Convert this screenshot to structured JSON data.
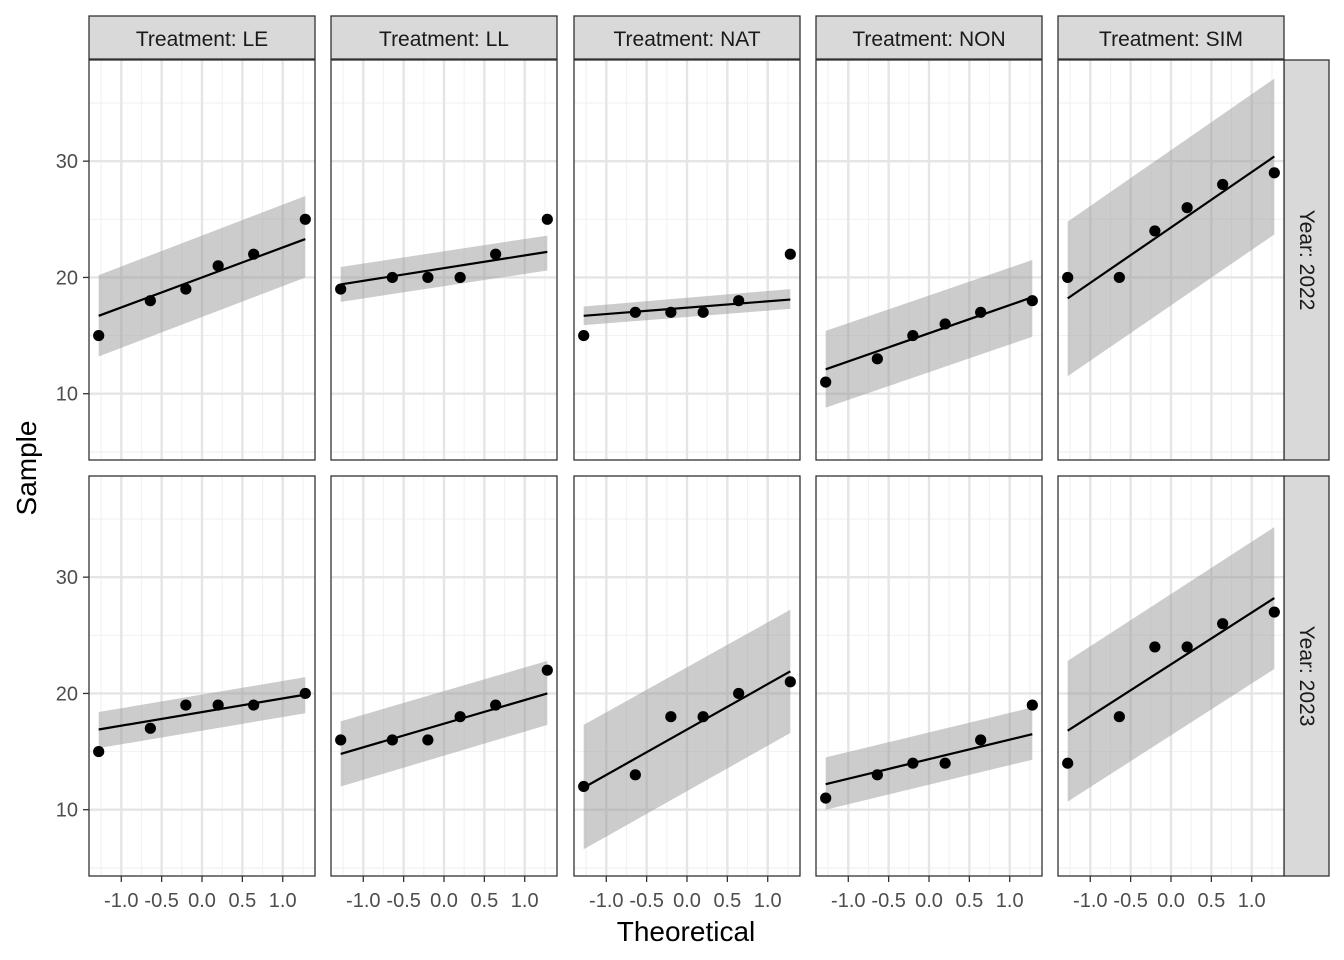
{
  "chart_data": {
    "type": "scatter",
    "subtype": "qq-plot-faceted",
    "xlabel": "Theoretical",
    "ylabel": "Sample",
    "x_ticks": [
      -1.0,
      -0.5,
      0.0,
      0.5,
      1.0
    ],
    "x_tick_labels": [
      "-1.0",
      "-0.5",
      "0.0",
      "0.5",
      "1.0"
    ],
    "y_ticks": [
      10,
      20,
      30
    ],
    "y_tick_labels": [
      "10",
      "20",
      "30"
    ],
    "xlim": [
      -1.4,
      1.4
    ],
    "ylim": [
      4.3,
      38.7
    ],
    "grid": true,
    "theme": "bw",
    "colors": {
      "points": "#000000",
      "line": "#000000",
      "band": "#999999",
      "strip": "#d9d9d9",
      "grid_major": "#e5e5e5",
      "grid_minor": "#f2f2f2"
    },
    "theoretical_quantiles": [
      -1.28,
      -0.64,
      -0.2,
      0.2,
      0.64,
      1.28
    ],
    "col_facets": [
      "Treatment: LE",
      "Treatment: LL",
      "Treatment: NAT",
      "Treatment: NON",
      "Treatment: SIM"
    ],
    "row_facets": [
      "Year: 2022",
      "Year: 2023"
    ],
    "panels": [
      {
        "row": 0,
        "col": 0,
        "sample": [
          15,
          18,
          19,
          21,
          22,
          25
        ],
        "line": [
          [
            -1.28,
            16.7
          ],
          [
            1.28,
            23.3
          ]
        ],
        "band_lower": [
          13.2,
          20.0
        ],
        "band_upper": [
          20.2,
          27.0
        ]
      },
      {
        "row": 0,
        "col": 1,
        "sample": [
          19,
          20,
          20,
          20,
          22,
          25
        ],
        "line": [
          [
            -1.28,
            19.4
          ],
          [
            1.28,
            22.2
          ]
        ],
        "band_lower": [
          17.9,
          20.6
        ],
        "band_upper": [
          20.9,
          23.6
        ]
      },
      {
        "row": 0,
        "col": 2,
        "sample": [
          15,
          17,
          17,
          17,
          18,
          22
        ],
        "line": [
          [
            -1.28,
            16.7
          ],
          [
            1.28,
            18.1
          ]
        ],
        "band_lower": [
          15.9,
          17.3
        ],
        "band_upper": [
          17.5,
          19.0
        ]
      },
      {
        "row": 0,
        "col": 3,
        "sample": [
          11,
          13,
          15,
          16,
          17,
          18
        ],
        "line": [
          [
            -1.28,
            12.1
          ],
          [
            1.28,
            18.3
          ]
        ],
        "band_lower": [
          8.8,
          14.9
        ],
        "band_upper": [
          15.4,
          21.5
        ]
      },
      {
        "row": 0,
        "col": 4,
        "sample": [
          20,
          20,
          24,
          26,
          28,
          29
        ],
        "line": [
          [
            -1.28,
            18.2
          ],
          [
            1.28,
            30.4
          ]
        ],
        "band_lower": [
          11.5,
          23.7
        ],
        "band_upper": [
          24.8,
          37.1
        ]
      },
      {
        "row": 1,
        "col": 0,
        "sample": [
          15,
          17,
          19,
          19,
          19,
          20
        ],
        "line": [
          [
            -1.28,
            16.9
          ],
          [
            1.28,
            19.9
          ]
        ],
        "band_lower": [
          15.3,
          18.3
        ],
        "band_upper": [
          18.4,
          21.4
        ]
      },
      {
        "row": 1,
        "col": 1,
        "sample": [
          16,
          16,
          16,
          18,
          19,
          22
        ],
        "line": [
          [
            -1.28,
            14.8
          ],
          [
            1.28,
            20.0
          ]
        ],
        "band_lower": [
          12.0,
          17.3
        ],
        "band_upper": [
          17.6,
          22.8
        ]
      },
      {
        "row": 1,
        "col": 2,
        "sample": [
          12,
          13,
          18,
          18,
          20,
          21
        ],
        "line": [
          [
            -1.28,
            11.9
          ],
          [
            1.28,
            21.9
          ]
        ],
        "band_lower": [
          6.6,
          16.6
        ],
        "band_upper": [
          17.3,
          27.2
        ]
      },
      {
        "row": 1,
        "col": 3,
        "sample": [
          11,
          13,
          14,
          14,
          16,
          19
        ],
        "line": [
          [
            -1.28,
            12.2
          ],
          [
            1.28,
            16.5
          ]
        ],
        "band_lower": [
          10.0,
          14.3
        ],
        "band_upper": [
          14.5,
          18.8
        ]
      },
      {
        "row": 1,
        "col": 4,
        "sample": [
          14,
          18,
          24,
          24,
          26,
          27
        ],
        "line": [
          [
            -1.28,
            16.8
          ],
          [
            1.28,
            28.2
          ]
        ],
        "band_lower": [
          10.7,
          22.1
        ],
        "band_upper": [
          22.8,
          34.3
        ]
      }
    ]
  }
}
